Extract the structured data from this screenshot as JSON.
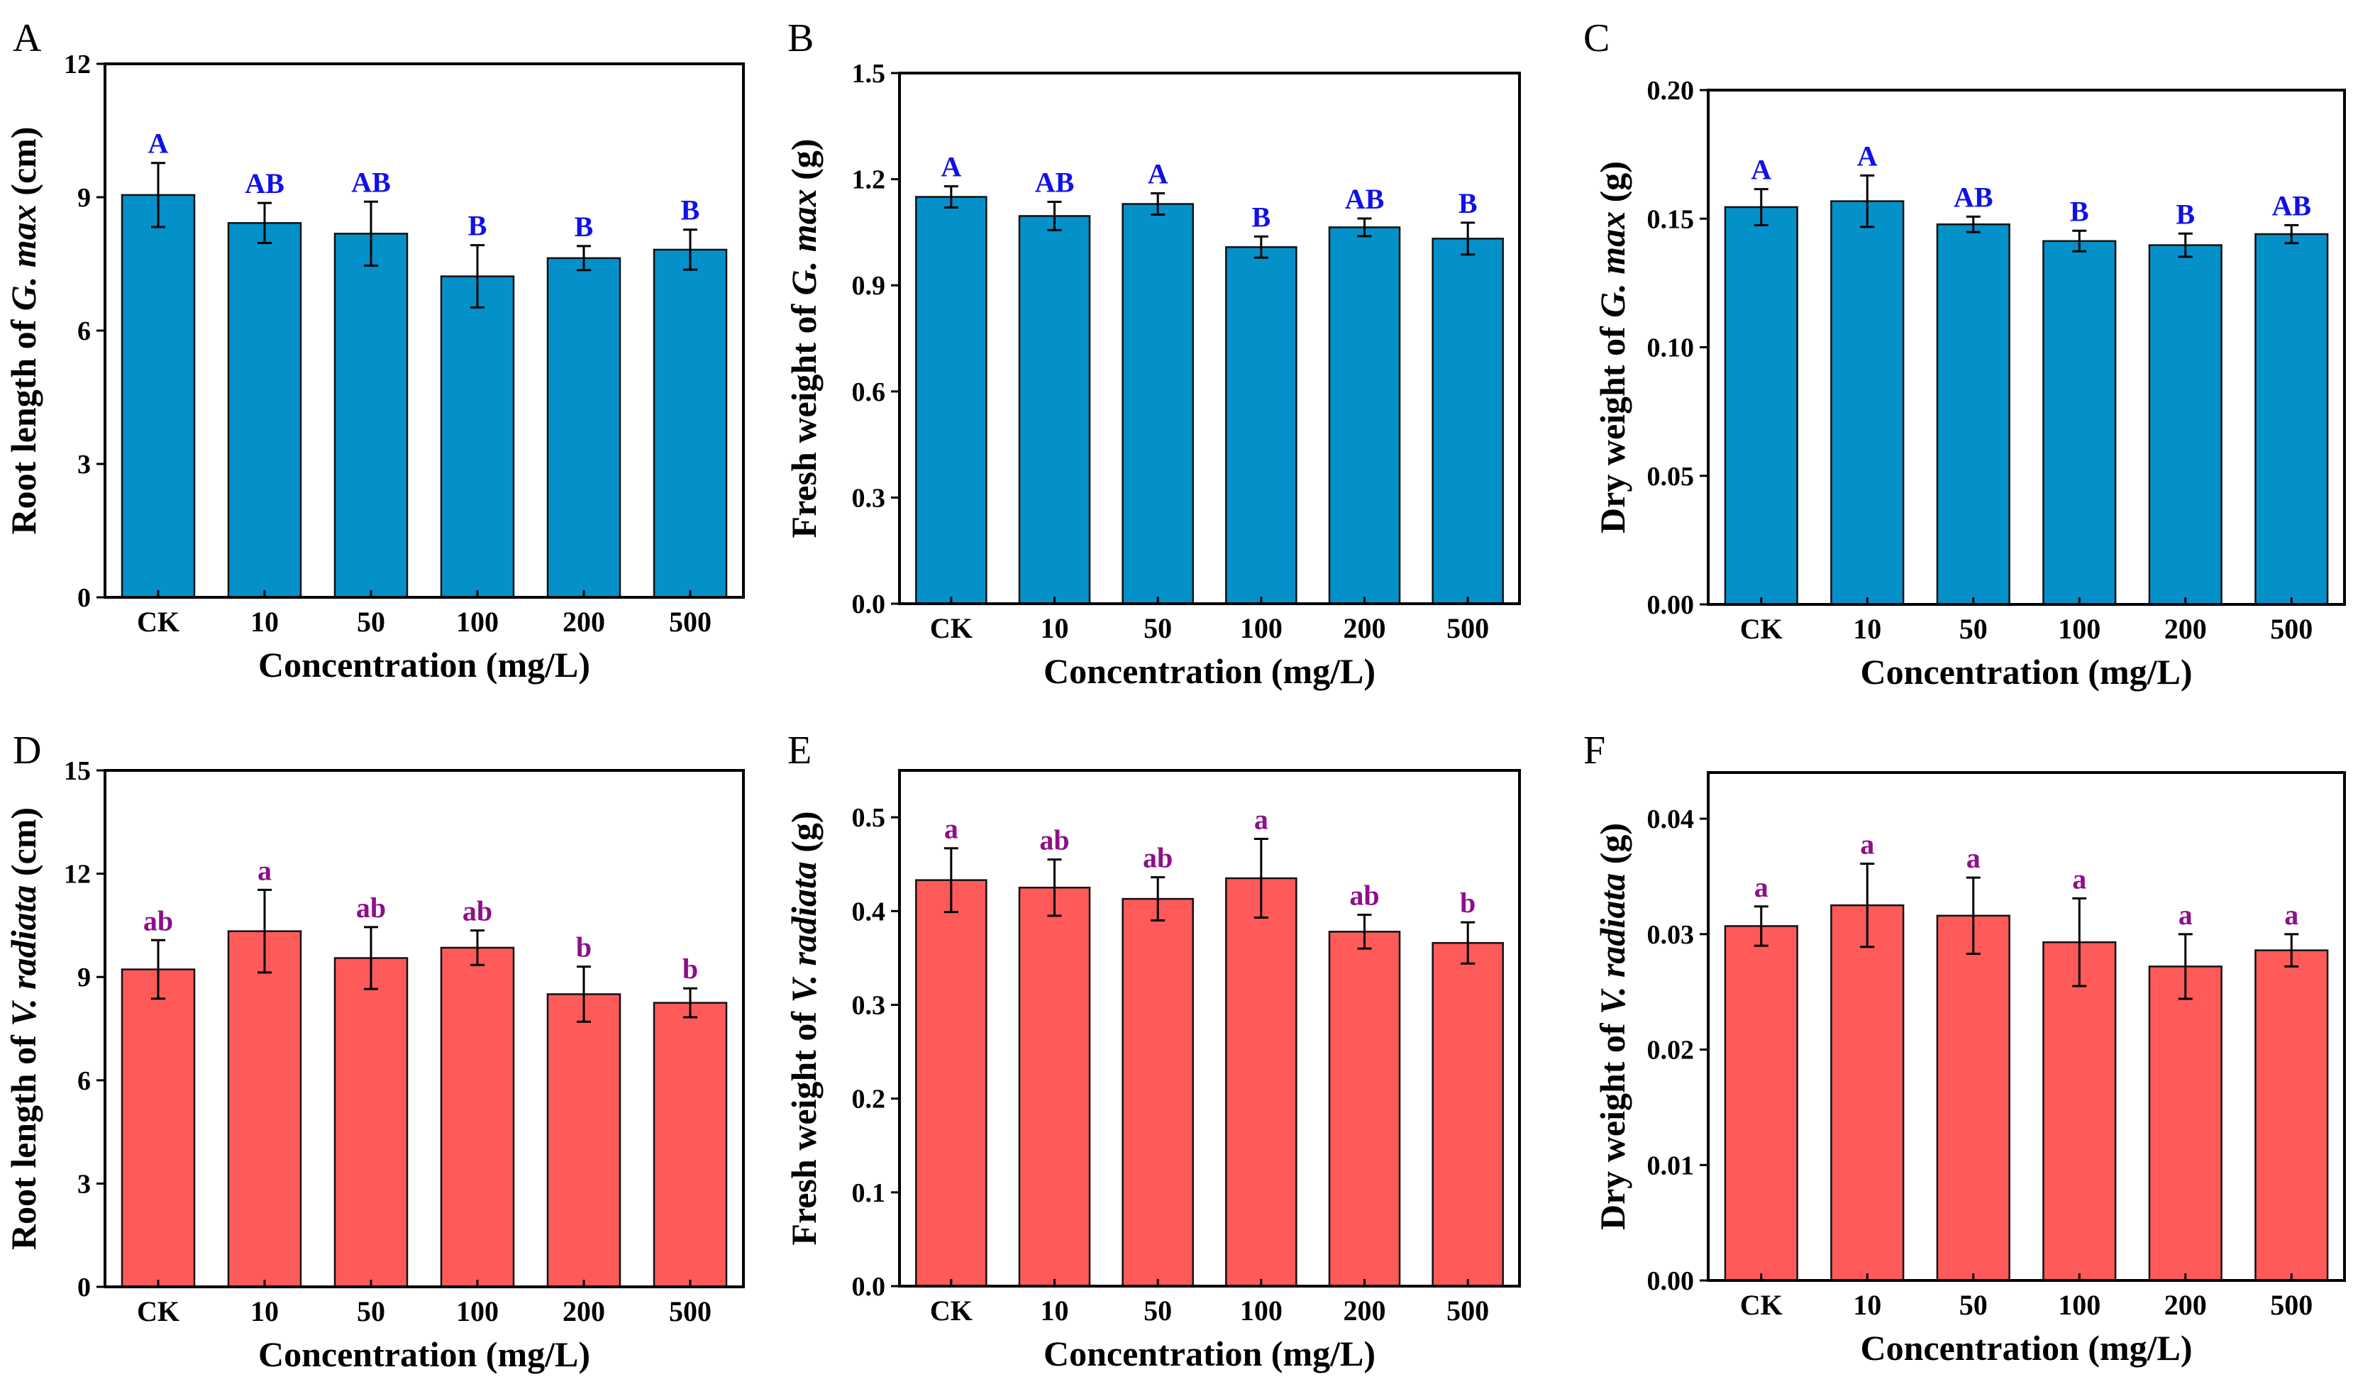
{
  "colors": {
    "blue_bar": "#0491c9",
    "red_bar": "#ff5a5a",
    "blue_letters": "#1010e8",
    "purple_letters": "#8e0f8a",
    "axis": "#000000"
  },
  "chart_data": [
    {
      "panel": "A",
      "type": "bar",
      "title": "",
      "categories": [
        "CK",
        "10",
        "50",
        "100",
        "200",
        "500"
      ],
      "values": [
        9.05,
        8.42,
        8.18,
        7.22,
        7.63,
        7.82
      ],
      "errors": [
        0.72,
        0.45,
        0.72,
        0.7,
        0.27,
        0.45
      ],
      "sig_letters": [
        "A",
        "AB",
        "AB",
        "B",
        "B",
        "B"
      ],
      "ylim": [
        0,
        12
      ],
      "yticks": [
        "0",
        "3",
        "6",
        "9",
        "12"
      ],
      "ylabel_pre": "Root length of ",
      "ylabel_species": "G. max",
      "ylabel_post": " (cm)",
      "xlabel": "Concentration (mg/L)",
      "color_key": "blue"
    },
    {
      "panel": "B",
      "type": "bar",
      "title": "",
      "categories": [
        "CK",
        "10",
        "50",
        "100",
        "200",
        "500"
      ],
      "values": [
        1.15,
        1.096,
        1.13,
        1.008,
        1.064,
        1.032
      ],
      "errors": [
        0.03,
        0.04,
        0.03,
        0.03,
        0.025,
        0.045
      ],
      "sig_letters": [
        "A",
        "AB",
        "A",
        "B",
        "AB",
        "B"
      ],
      "ylim": [
        0,
        1.5
      ],
      "yticks": [
        "0.0",
        "0.3",
        "0.6",
        "0.9",
        "1.2",
        "1.5"
      ],
      "ylabel_pre": "Fresh weight of ",
      "ylabel_species": "G. max",
      "ylabel_post": " (g)",
      "xlabel": "Concentration (mg/L)",
      "color_key": "blue"
    },
    {
      "panel": "C",
      "type": "bar",
      "title": "",
      "categories": [
        "CK",
        "10",
        "50",
        "100",
        "200",
        "500"
      ],
      "values": [
        0.1545,
        0.1568,
        0.1478,
        0.1413,
        0.1397,
        0.144
      ],
      "errors": [
        0.007,
        0.01,
        0.003,
        0.004,
        0.0045,
        0.0035
      ],
      "sig_letters": [
        "A",
        "A",
        "AB",
        "B",
        "B",
        "AB"
      ],
      "ylim": [
        0,
        0.2
      ],
      "yticks": [
        "0.00",
        "0.05",
        "0.10",
        "0.15",
        "0.20"
      ],
      "ylabel_pre": "Dry weight of ",
      "ylabel_species": "G. max",
      "ylabel_post": " (g)",
      "xlabel": "Concentration (mg/L)",
      "color_key": "blue"
    },
    {
      "panel": "D",
      "type": "bar",
      "title": "",
      "categories": [
        "CK",
        "10",
        "50",
        "100",
        "200",
        "500"
      ],
      "values": [
        9.22,
        10.33,
        9.55,
        9.85,
        8.5,
        8.25
      ],
      "errors": [
        0.85,
        1.2,
        0.9,
        0.5,
        0.8,
        0.42
      ],
      "sig_letters": [
        "ab",
        "a",
        "ab",
        "ab",
        "b",
        "b"
      ],
      "ylim": [
        0,
        15
      ],
      "yticks": [
        "0",
        "3",
        "6",
        "9",
        "12",
        "15"
      ],
      "ylabel_pre": "Root length of ",
      "ylabel_species": "V. radiata",
      "ylabel_post": " (cm)",
      "xlabel": "Concentration (mg/L)",
      "color_key": "red"
    },
    {
      "panel": "E",
      "type": "bar",
      "title": "",
      "categories": [
        "CK",
        "10",
        "50",
        "100",
        "200",
        "500"
      ],
      "values": [
        0.433,
        0.425,
        0.413,
        0.435,
        0.378,
        0.366
      ],
      "errors": [
        0.034,
        0.03,
        0.023,
        0.042,
        0.018,
        0.022
      ],
      "sig_letters": [
        "a",
        "ab",
        "ab",
        "a",
        "ab",
        "b"
      ],
      "ylim": [
        0,
        0.55
      ],
      "yticks": [
        "0.0",
        "0.1",
        "0.2",
        "0.3",
        "0.4",
        "0.5"
      ],
      "ylabel_pre": "Fresh weight of ",
      "ylabel_species": "V. radiata",
      "ylabel_post": " (g)",
      "xlabel": "Concentration (mg/L)",
      "color_key": "red"
    },
    {
      "panel": "F",
      "type": "bar",
      "title": "",
      "categories": [
        "CK",
        "10",
        "50",
        "100",
        "200",
        "500"
      ],
      "values": [
        0.0307,
        0.0325,
        0.0316,
        0.0293,
        0.0272,
        0.0286
      ],
      "errors": [
        0.0017,
        0.0036,
        0.0033,
        0.0038,
        0.0028,
        0.0014
      ],
      "sig_letters": [
        "a",
        "a",
        "a",
        "a",
        "a",
        "a"
      ],
      "ylim": [
        0,
        0.044
      ],
      "yticks": [
        "0.00",
        "0.01",
        "0.02",
        "0.03",
        "0.04"
      ],
      "ylabel_pre": "Dry weight of ",
      "ylabel_species": "V. radiata",
      "ylabel_post": " (g)",
      "xlabel": "Concentration (mg/L)",
      "color_key": "red"
    }
  ]
}
